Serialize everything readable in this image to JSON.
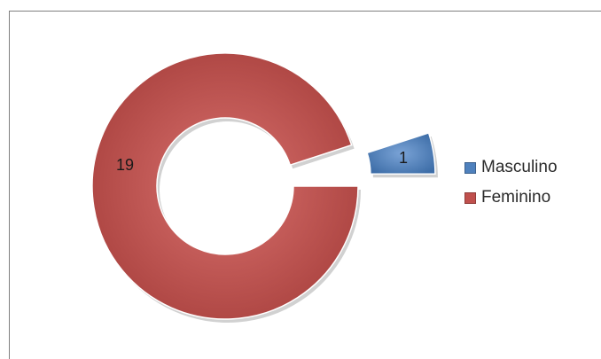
{
  "chart_data": {
    "type": "pie",
    "style": "doughnut",
    "categories": [
      "Masculino",
      "Feminino"
    ],
    "values": [
      1,
      19
    ],
    "colors": [
      "#4f81bd",
      "#c0504d"
    ],
    "data_labels": [
      "1",
      "19"
    ],
    "exploded": "Masculino",
    "legend": {
      "placement": "right",
      "entries": [
        "Masculino",
        "Feminino"
      ]
    }
  }
}
